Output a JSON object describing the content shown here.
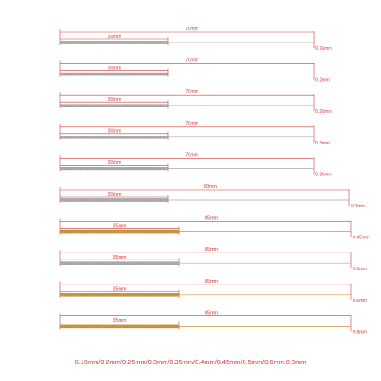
{
  "accent_color": "#d23a3a",
  "spring_colors": {
    "silver": "#b9b9b9",
    "gold": "#d6a24a"
  },
  "rows": [
    {
      "total": "70mm",
      "body": "30mm",
      "wire": "0.16mm",
      "metal": "silver"
    },
    {
      "total": "70mm",
      "body": "30mm",
      "wire": "0.2mm",
      "metal": "silver"
    },
    {
      "total": "70mm",
      "body": "30mm",
      "wire": "0.25mm",
      "metal": "silver"
    },
    {
      "total": "70mm",
      "body": "30mm",
      "wire": "0.3mm",
      "metal": "silver"
    },
    {
      "total": "70mm",
      "body": "30mm",
      "wire": "0.35mm",
      "metal": "silver"
    },
    {
      "total": "80mm",
      "body": "30mm",
      "wire": "0.4mm",
      "metal": "silver"
    },
    {
      "total": "85mm",
      "body": "35mm",
      "wire": "0.45mm",
      "metal": "gold"
    },
    {
      "total": "85mm",
      "body": "35mm",
      "wire": "0.5mm",
      "metal": "silver"
    },
    {
      "total": "85mm",
      "body": "35mm",
      "wire": "0.6mm",
      "metal": "gold"
    },
    {
      "total": "85mm",
      "body": "35mm",
      "wire": "0.8mm",
      "metal": "gold"
    }
  ],
  "caption": "0.16mm/0.2mm/0.25mm/0.3mm/0.35mm/0.4mm/0.45mm/0.5mm/0.6mm.0.8mm"
}
